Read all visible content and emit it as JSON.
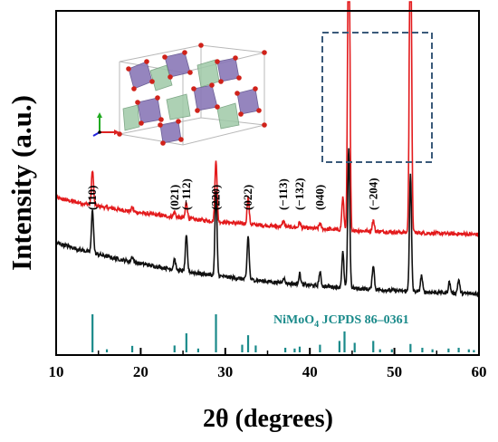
{
  "chart_data": {
    "type": "line",
    "xlabel": "2θ (degrees)",
    "ylabel": "Intensity (a.u.)",
    "xlim": [
      10,
      60
    ],
    "x_ticks": [
      10,
      20,
      30,
      40,
      50,
      60
    ],
    "y_ticks_labeled": false,
    "grid": false,
    "reference_label": "NiMoO",
    "reference_sub": "4",
    "reference_rest": " JCPDS 86–0361",
    "peak_labels": [
      {
        "text": "(110)",
        "x": 14.3
      },
      {
        "text": "(021)",
        "x": 24.0
      },
      {
        "text": "(−112)",
        "x": 25.4
      },
      {
        "text": "(220)",
        "x": 28.9
      },
      {
        "text": "(022)",
        "x": 32.7
      },
      {
        "text": "(−113)",
        "x": 36.9
      },
      {
        "text": "(−132)",
        "x": 38.8
      },
      {
        "text": "(040)",
        "x": 41.2
      },
      {
        "text": "(−204)",
        "x": 47.5
      }
    ],
    "series": [
      {
        "color": "#e31a1c",
        "baseline": 0.15,
        "offset": 0.395,
        "peaks": [
          [
            14.3,
            0.13
          ],
          [
            19.0,
            0.015
          ],
          [
            24.0,
            0.02
          ],
          [
            25.4,
            0.06
          ],
          [
            28.9,
            0.23
          ],
          [
            32.7,
            0.1
          ],
          [
            36.9,
            0.02
          ],
          [
            38.8,
            0.02
          ],
          [
            41.2,
            0.02
          ],
          [
            43.9,
            0.12
          ],
          [
            44.6,
            1.4
          ],
          [
            47.5,
            0.04
          ],
          [
            51.9,
            1.4
          ]
        ]
      },
      {
        "color": "#111111",
        "baseline": 0.21,
        "offset": 0.17,
        "peaks": [
          [
            14.3,
            0.16
          ],
          [
            19.0,
            0.02
          ],
          [
            24.0,
            0.04
          ],
          [
            25.4,
            0.13
          ],
          [
            28.9,
            0.31
          ],
          [
            32.7,
            0.16
          ],
          [
            36.9,
            0.02
          ],
          [
            38.8,
            0.04
          ],
          [
            41.2,
            0.05
          ],
          [
            43.9,
            0.13
          ],
          [
            44.6,
            0.52
          ],
          [
            47.5,
            0.09
          ],
          [
            51.9,
            0.43
          ],
          [
            53.2,
            0.06
          ],
          [
            56.5,
            0.04
          ],
          [
            57.6,
            0.05
          ]
        ]
      }
    ],
    "reference_sticks": {
      "color": "#1a8a8a",
      "lines": [
        [
          14.3,
          1.0
        ],
        [
          16.0,
          0.08
        ],
        [
          19.0,
          0.17
        ],
        [
          24.0,
          0.18
        ],
        [
          25.4,
          0.5
        ],
        [
          26.8,
          0.1
        ],
        [
          28.9,
          1.0
        ],
        [
          32.0,
          0.2
        ],
        [
          32.7,
          0.45
        ],
        [
          33.6,
          0.18
        ],
        [
          37.1,
          0.12
        ],
        [
          38.2,
          0.1
        ],
        [
          38.8,
          0.15
        ],
        [
          41.2,
          0.2
        ],
        [
          43.5,
          0.3
        ],
        [
          44.1,
          0.55
        ],
        [
          45.3,
          0.25
        ],
        [
          47.5,
          0.3
        ],
        [
          48.3,
          0.08
        ],
        [
          49.7,
          0.08
        ],
        [
          51.9,
          0.22
        ],
        [
          53.3,
          0.12
        ],
        [
          54.5,
          0.08
        ],
        [
          56.4,
          0.1
        ],
        [
          57.6,
          0.12
        ],
        [
          58.8,
          0.08
        ],
        [
          59.4,
          0.06
        ]
      ]
    }
  }
}
